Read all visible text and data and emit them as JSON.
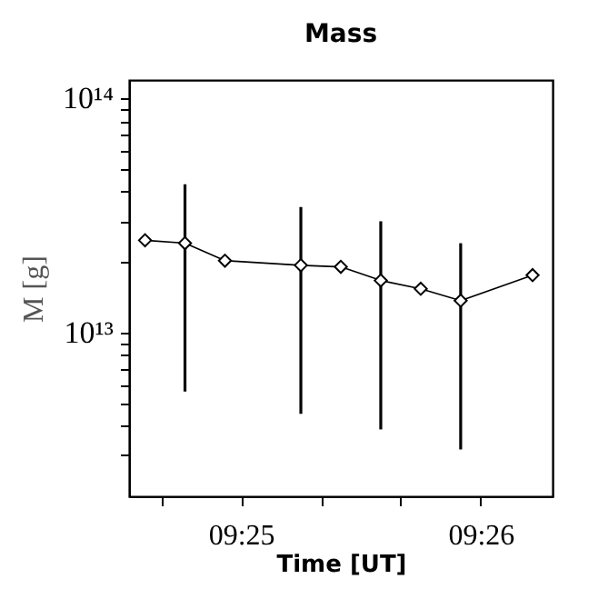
{
  "chart_data": {
    "type": "line",
    "title": "Mass",
    "xlabel": "Time [UT]",
    "ylabel": "M [g]",
    "x": [
      9.41,
      9.412778,
      9.415556,
      9.420833,
      9.423611,
      9.426389,
      9.429167,
      9.431944,
      9.436944
    ],
    "series": [
      {
        "color": "#000000",
        "values": [
          24800000000000.0,
          24100000000000.0,
          20300000000000.0,
          19400000000000.0,
          19100000000000.0,
          16700000000000.0,
          15400000000000.0,
          13700000000000.0,
          17600000000000.0
        ],
        "errors": [
          null,
          [
            5600000000000.0,
            43000000000000.0
          ],
          null,
          [
            4500000000000.0,
            34400000000000.0
          ],
          null,
          [
            3860000000000.0,
            29900000000000.0
          ],
          null,
          [
            3170000000000.0,
            24100000000000.0
          ],
          null
        ]
      }
    ],
    "log": "y",
    "marker": "diamond",
    "line_style": "solid",
    "grid": false,
    "xlim": [
      9.408889,
      9.438333
    ],
    "xticks": [
      {
        "value": 9.411111,
        "label": null
      },
      {
        "value": 9.416667,
        "label": "09:25"
      },
      {
        "value": 9.422222,
        "label": null
      },
      {
        "value": 9.427778,
        "label": null
      },
      {
        "value": 9.433333,
        "label": "09:26"
      }
    ],
    "ylim": [
      2000000000000.0,
      120000000000000.0
    ],
    "yticks": [
      {
        "value": 3000000000000.0,
        "label": null
      },
      {
        "value": 4000000000000.0,
        "label": null
      },
      {
        "value": 5000000000000.0,
        "label": null
      },
      {
        "value": 6000000000000.0,
        "label": null
      },
      {
        "value": 7000000000000.0,
        "label": null
      },
      {
        "value": 8000000000000.0,
        "label": null
      },
      {
        "value": 9000000000000.0,
        "label": null
      },
      {
        "value": 10000000000000.0,
        "label": "10¹³"
      },
      {
        "value": 20000000000000.0,
        "label": null
      },
      {
        "value": 30000000000000.0,
        "label": null
      },
      {
        "value": 40000000000000.0,
        "label": null
      },
      {
        "value": 50000000000000.0,
        "label": null
      },
      {
        "value": 60000000000000.0,
        "label": null
      },
      {
        "value": 70000000000000.0,
        "label": null
      },
      {
        "value": 80000000000000.0,
        "label": null
      },
      {
        "value": 90000000000000.0,
        "label": null
      },
      {
        "value": 100000000000000.0,
        "label": "10¹⁴"
      }
    ]
  }
}
